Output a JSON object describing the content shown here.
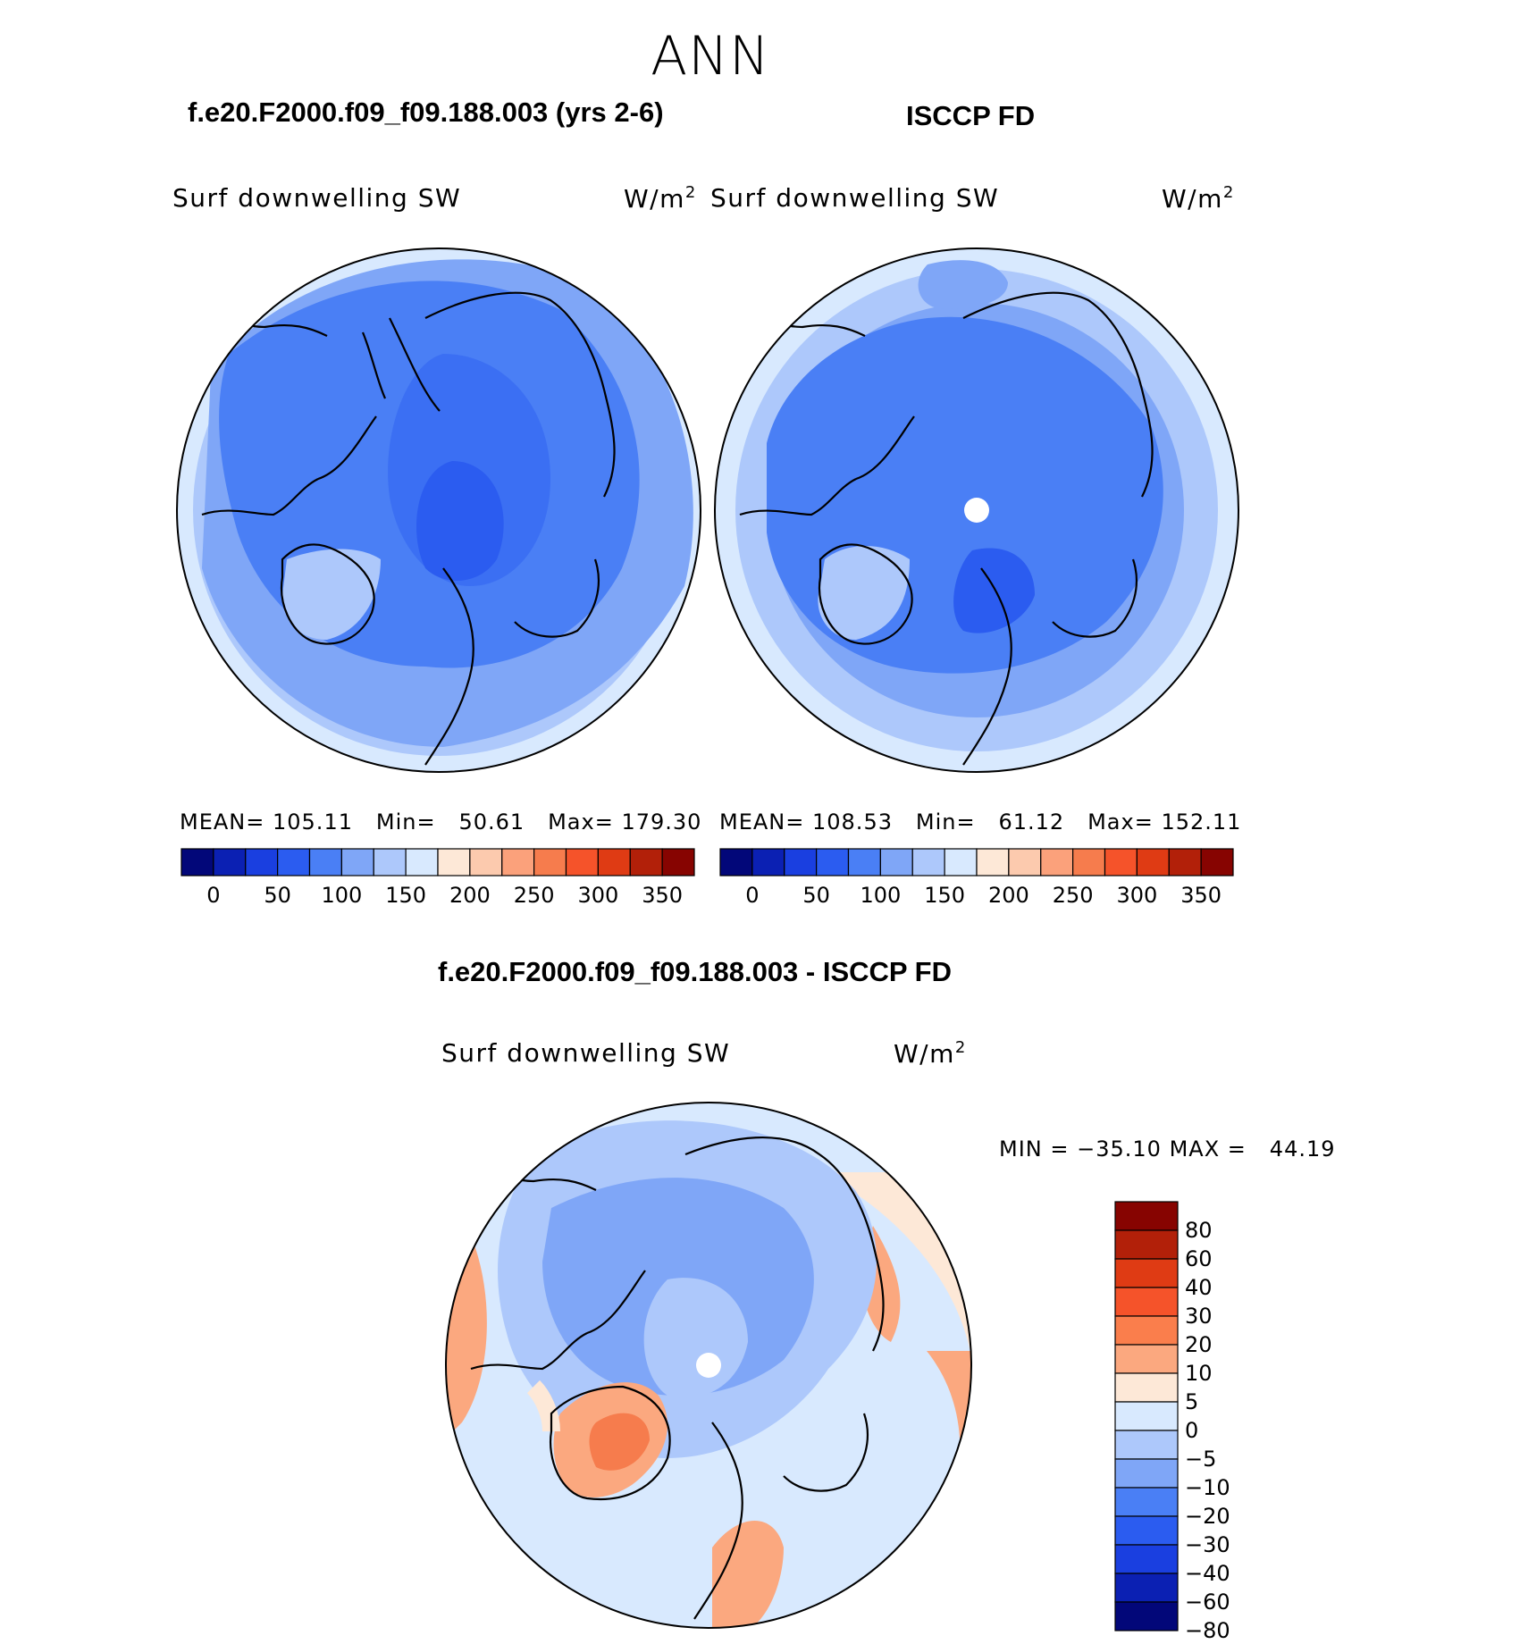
{
  "season": "ANN",
  "panels": [
    {
      "title": "f.e20.F2000.f09_f09.188.003 (yrs 2-6)",
      "variable": "Surf downwelling SW",
      "units": "W/m",
      "units_exp": "2",
      "stats": {
        "mean_label": "MEAN=",
        "mean": "105.11",
        "min_label": "Min=",
        "min": "50.61",
        "max_label": "Max=",
        "max": "179.30"
      },
      "colorbar_ticks": [
        "0",
        "50",
        "100",
        "150",
        "200",
        "250",
        "300",
        "350"
      ]
    },
    {
      "title": "ISCCP FD",
      "variable": "Surf downwelling SW",
      "units": "W/m",
      "units_exp": "2",
      "stats": {
        "mean_label": "MEAN=",
        "mean": "108.53",
        "min_label": "Min=",
        "min": "61.12",
        "max_label": "Max=",
        "max": "152.11"
      },
      "colorbar_ticks": [
        "0",
        "50",
        "100",
        "150",
        "200",
        "250",
        "300",
        "350"
      ]
    }
  ],
  "diff": {
    "title": "f.e20.F2000.f09_f09.188.003 - ISCCP FD",
    "variable": "Surf downwelling SW",
    "units": "W/m",
    "units_exp": "2",
    "min_label": "MIN =",
    "min": "−35.10",
    "max_label": "MAX =",
    "max": "44.19",
    "colorbar_ticks": [
      "80",
      "60",
      "40",
      "30",
      "20",
      "10",
      "5",
      "0",
      "−5",
      "−10",
      "−20",
      "−30",
      "−40",
      "−60",
      "−80"
    ]
  },
  "colors": {
    "horizontal_scale": [
      "#020779",
      "#0b20b3",
      "#1a3fe0",
      "#2b5cf0",
      "#4a7ff5",
      "#7fa6f7",
      "#adc8fb",
      "#d8e9fe",
      "#fde8d7",
      "#fccaae",
      "#fba17b",
      "#f67c4d",
      "#f5532a",
      "#df3b14",
      "#b22009",
      "#870401"
    ],
    "vertical_scale_top_to_bottom": [
      "#870401",
      "#b22009",
      "#df3b14",
      "#f5532a",
      "#fa7e4c",
      "#fba87f",
      "#fde8d7",
      "#d8e9fe",
      "#adc8fb",
      "#7fa6f7",
      "#4a7ff5",
      "#2b5cf0",
      "#1a3fe0",
      "#0b20b3",
      "#020779"
    ],
    "map_light": "#adc8fb",
    "map_mid": "#7fa6f7",
    "map_dark": "#4a7ff5",
    "map_darker": "#2b5cf0",
    "diff_warm": "#fba87f",
    "diff_hot": "#f67c4d",
    "diff_pale": "#fde8d7",
    "diff_cold": "#d8e9fe"
  }
}
